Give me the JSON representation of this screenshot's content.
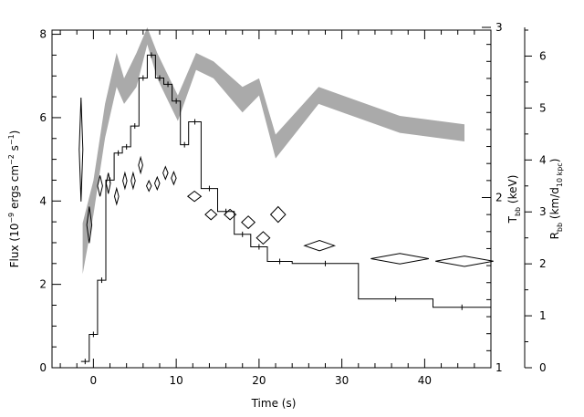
{
  "chart_data": {
    "type": "line",
    "xlabel": "Time (s)",
    "ylabel": {
      "text": "Flux (10",
      "exp1": "−9",
      "mid": " ergs cm",
      "exp2": "−2",
      "mid2": " s",
      "exp3": "−1",
      "end": ")"
    },
    "y2label": {
      "main": "T",
      "sub": "bb",
      "unit": " (keV)"
    },
    "y3label": {
      "main": "R",
      "sub": "bb",
      "mid": " (km/d",
      "sub2": "10 kpc",
      "end": ")"
    },
    "xlim": [
      -5,
      48
    ],
    "ylim": [
      0,
      8.1
    ],
    "y2lim": [
      1,
      3
    ],
    "y3lim": [
      0,
      6.5
    ],
    "xticks": [
      "0",
      "10",
      "20",
      "30",
      "40"
    ],
    "xtick_values": [
      0,
      10,
      20,
      30,
      40
    ],
    "yticks": [
      "0",
      "2",
      "4",
      "6",
      "8"
    ],
    "ytick_values": [
      0,
      2,
      4,
      6,
      8
    ],
    "y2ticks": [
      "1",
      "2",
      "3"
    ],
    "y2tick_values": [
      1,
      2,
      3
    ],
    "y3ticks": [
      "0",
      "1",
      "2",
      "3",
      "4",
      "5",
      "6"
    ],
    "y3tick_values": [
      0,
      1,
      2,
      3,
      4,
      5,
      6
    ],
    "flux_histogram": {
      "name": "Flux",
      "bins": [
        [
          -1.5,
          -0.5,
          0.15
        ],
        [
          -0.5,
          0.5,
          0.8
        ],
        [
          0.5,
          1.5,
          2.1
        ],
        [
          1.5,
          2.5,
          4.5
        ],
        [
          2.5,
          3.5,
          5.15
        ],
        [
          3.5,
          4.5,
          5.3
        ],
        [
          4.5,
          5.5,
          5.8
        ],
        [
          5.5,
          6.5,
          6.95
        ],
        [
          6.5,
          7.5,
          7.5
        ],
        [
          7.5,
          8.5,
          6.95
        ],
        [
          8.5,
          9.5,
          6.8
        ],
        [
          9.5,
          10.5,
          6.4
        ],
        [
          10.5,
          11.5,
          5.35
        ],
        [
          11.5,
          13.0,
          5.9
        ],
        [
          13.0,
          15.0,
          4.3
        ],
        [
          15.0,
          17.0,
          3.75
        ],
        [
          17.0,
          19.0,
          3.2
        ],
        [
          19.0,
          21.0,
          2.9
        ],
        [
          21.0,
          24.0,
          2.55
        ],
        [
          24.0,
          32.0,
          2.5
        ],
        [
          32.0,
          41.0,
          1.65
        ],
        [
          41.0,
          48.0,
          1.45
        ]
      ]
    },
    "temperature_band": {
      "name": "T_bb",
      "points": [
        [
          -1.3,
          1.55,
          1.85
        ],
        [
          0.0,
          1.9,
          2.1
        ],
        [
          1.4,
          2.35,
          2.55
        ],
        [
          2.8,
          2.65,
          2.85
        ],
        [
          3.7,
          2.55,
          2.7
        ],
        [
          5.2,
          2.65,
          2.85
        ],
        [
          6.5,
          2.9,
          3.0
        ],
        [
          7.7,
          2.7,
          2.85
        ],
        [
          8.7,
          2.6,
          2.75
        ],
        [
          10.2,
          2.45,
          2.6
        ],
        [
          12.4,
          2.75,
          2.85
        ],
        [
          14.5,
          2.7,
          2.8
        ],
        [
          18.0,
          2.5,
          2.65
        ],
        [
          20.0,
          2.6,
          2.7
        ],
        [
          22.0,
          2.23,
          2.37
        ],
        [
          27.2,
          2.55,
          2.65
        ],
        [
          37.0,
          2.38,
          2.48
        ],
        [
          44.8,
          2.33,
          2.43
        ]
      ]
    },
    "radius_points": {
      "name": "R_bb",
      "points": [
        [
          -1.5,
          4.2,
          0.22,
          1.0
        ],
        [
          -0.5,
          2.75,
          0.3,
          0.35
        ],
        [
          0.8,
          3.5,
          0.3,
          0.2
        ],
        [
          1.8,
          3.55,
          0.25,
          0.2
        ],
        [
          2.8,
          3.3,
          0.25,
          0.15
        ],
        [
          3.8,
          3.6,
          0.25,
          0.15
        ],
        [
          4.8,
          3.6,
          0.25,
          0.15
        ],
        [
          5.7,
          3.9,
          0.25,
          0.15
        ],
        [
          6.7,
          3.5,
          0.3,
          0.1
        ],
        [
          7.7,
          3.55,
          0.3,
          0.12
        ],
        [
          8.7,
          3.75,
          0.3,
          0.12
        ],
        [
          9.7,
          3.65,
          0.3,
          0.12
        ],
        [
          12.2,
          3.3,
          0.8,
          0.1
        ],
        [
          14.2,
          2.95,
          0.7,
          0.1
        ],
        [
          16.5,
          2.95,
          0.7,
          0.1
        ],
        [
          18.7,
          2.8,
          0.8,
          0.12
        ],
        [
          20.5,
          2.5,
          0.8,
          0.12
        ],
        [
          22.3,
          2.95,
          0.9,
          0.15
        ],
        [
          27.3,
          2.35,
          1.8,
          0.1
        ],
        [
          37.0,
          2.1,
          3.5,
          0.1
        ],
        [
          44.8,
          2.05,
          3.5,
          0.1
        ]
      ]
    }
  }
}
